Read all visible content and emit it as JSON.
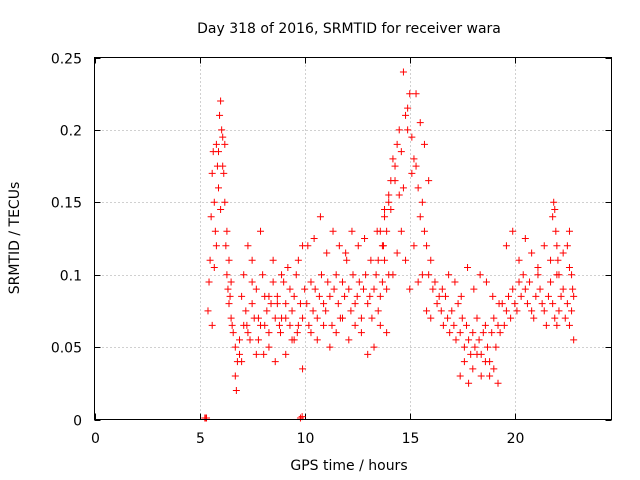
{
  "chart_data": {
    "type": "scatter",
    "title": "Day 318 of 2016, SRMTID for receiver wara",
    "xlabel": "GPS time / hours",
    "ylabel": "SRMTID / TECUs",
    "xlim": [
      0,
      24.6
    ],
    "ylim": [
      0,
      0.25
    ],
    "x_ticks": [
      0,
      5,
      10,
      15,
      20
    ],
    "x_tick_labels": [
      "0",
      "5",
      "10",
      "15",
      "20"
    ],
    "y_ticks": [
      0,
      0.05,
      0.1,
      0.15,
      0.2,
      0.25
    ],
    "y_tick_labels": [
      "0",
      "0.05",
      "0.1",
      "0.15",
      "0.2",
      "0.25"
    ],
    "grid": true,
    "marker": "+",
    "series": [
      {
        "name": "SRMTID",
        "color": "#ff0000",
        "x": [
          5.25,
          5.3,
          5.33,
          9.8,
          9.88,
          5.4,
          5.45,
          5.5,
          5.55,
          5.6,
          5.65,
          5.7,
          5.75,
          5.8,
          5.85,
          5.9,
          5.95,
          6.0,
          6.05,
          6.1,
          6.15,
          6.2,
          6.25,
          6.3,
          6.35,
          6.4,
          6.45,
          6.5,
          6.55,
          6.6,
          5.6,
          5.7,
          5.8,
          5.9,
          6.0,
          6.1,
          6.2,
          6.3,
          6.4,
          6.5,
          6.7,
          6.8,
          6.9,
          7.0,
          7.1,
          7.2,
          7.3,
          7.4,
          7.5,
          7.6,
          7.7,
          7.8,
          7.9,
          8.0,
          8.1,
          8.2,
          8.3,
          8.4,
          8.5,
          8.6,
          8.7,
          8.8,
          8.9,
          9.0,
          9.1,
          9.2,
          9.3,
          9.4,
          9.5,
          9.6,
          9.7,
          9.8,
          9.9,
          10.0,
          6.7,
          6.9,
          7.1,
          7.3,
          7.5,
          7.7,
          7.9,
          8.1,
          8.3,
          8.5,
          8.7,
          8.9,
          9.1,
          9.3,
          9.5,
          9.7,
          9.9,
          6.75,
          7.0,
          7.25,
          7.5,
          7.8,
          8.05,
          8.3,
          8.6,
          8.85,
          9.1,
          9.4,
          9.65,
          9.9,
          10.1,
          10.2,
          10.3,
          10.4,
          10.5,
          10.6,
          10.7,
          10.8,
          10.9,
          11.0,
          11.1,
          11.2,
          11.3,
          11.4,
          11.5,
          11.6,
          11.7,
          11.8,
          11.9,
          12.0,
          12.1,
          12.2,
          12.3,
          12.4,
          12.5,
          12.6,
          12.7,
          12.8,
          12.9,
          13.0,
          13.1,
          13.2,
          13.3,
          13.4,
          13.5,
          13.6,
          13.7,
          13.8,
          13.9,
          14.0,
          10.15,
          10.45,
          10.75,
          11.05,
          11.35,
          11.65,
          11.95,
          12.25,
          12.55,
          12.85,
          13.15,
          13.45,
          13.75,
          10.3,
          10.6,
          10.9,
          11.2,
          11.5,
          11.8,
          12.1,
          12.4,
          12.7,
          13.0,
          13.3,
          13.6,
          13.9,
          13.5,
          13.6,
          13.7,
          13.8,
          13.9,
          14.0,
          14.1,
          14.2,
          14.3,
          14.4,
          14.5,
          14.6,
          14.7,
          14.8,
          14.9,
          15.0,
          15.1,
          15.2,
          15.3,
          15.4,
          15.5,
          15.6,
          15.7,
          15.8,
          15.9,
          16.0,
          16.1,
          16.2,
          16.3,
          16.4,
          13.8,
          14.0,
          14.2,
          14.4,
          14.6,
          14.8,
          15.0,
          15.2,
          15.4,
          15.6,
          15.8,
          16.0,
          14.1,
          14.3,
          14.5,
          14.7,
          14.9,
          15.1,
          15.3,
          15.5,
          15.7,
          15.9,
          16.5,
          16.6,
          16.7,
          16.8,
          16.9,
          17.0,
          17.1,
          17.2,
          17.3,
          17.4,
          17.5,
          17.6,
          17.7,
          17.8,
          17.9,
          18.0,
          18.1,
          18.2,
          18.3,
          18.4,
          18.5,
          18.6,
          18.7,
          18.8,
          18.9,
          19.0,
          19.1,
          19.2,
          19.3,
          19.4,
          16.55,
          16.85,
          17.15,
          17.45,
          17.75,
          18.05,
          18.35,
          18.65,
          18.95,
          19.25,
          17.4,
          17.6,
          17.8,
          18.0,
          18.2,
          18.4,
          18.6,
          18.8,
          19.0,
          19.2,
          19.5,
          19.6,
          19.7,
          19.8,
          19.9,
          20.0,
          20.1,
          20.2,
          20.3,
          20.4,
          20.5,
          20.6,
          20.7,
          20.8,
          20.9,
          21.0,
          21.1,
          21.2,
          21.3,
          21.4,
          21.5,
          21.6,
          21.7,
          21.8,
          21.9,
          22.0,
          22.1,
          22.2,
          22.3,
          22.4,
          22.5,
          22.6,
          22.7,
          22.8,
          19.6,
          19.9,
          20.2,
          20.5,
          20.8,
          21.1,
          21.4,
          21.7,
          22.0,
          22.3,
          22.6,
          21.8,
          21.85,
          21.9,
          21.95,
          22.0,
          22.05,
          22.1,
          22.5,
          22.6,
          22.7,
          22.75,
          22.8
        ],
        "y": [
          0.001,
          0.001,
          0.001,
          0.001,
          0.002,
          0.075,
          0.095,
          0.11,
          0.14,
          0.17,
          0.185,
          0.15,
          0.13,
          0.19,
          0.175,
          0.16,
          0.21,
          0.22,
          0.2,
          0.195,
          0.17,
          0.15,
          0.12,
          0.1,
          0.09,
          0.08,
          0.085,
          0.07,
          0.065,
          0.06,
          0.065,
          0.105,
          0.12,
          0.185,
          0.145,
          0.175,
          0.19,
          0.13,
          0.11,
          0.095,
          0.05,
          0.04,
          0.055,
          0.085,
          0.065,
          0.075,
          0.06,
          0.055,
          0.08,
          0.07,
          0.09,
          0.07,
          0.065,
          0.1,
          0.085,
          0.075,
          0.06,
          0.08,
          0.095,
          0.07,
          0.085,
          0.065,
          0.07,
          0.095,
          0.08,
          0.105,
          0.09,
          0.075,
          0.085,
          0.1,
          0.065,
          0.08,
          0.07,
          0.09,
          0.03,
          0.045,
          0.1,
          0.12,
          0.11,
          0.045,
          0.13,
          0.065,
          0.05,
          0.11,
          0.08,
          0.1,
          0.045,
          0.065,
          0.055,
          0.11,
          0.12,
          0.02,
          0.04,
          0.065,
          0.095,
          0.055,
          0.045,
          0.085,
          0.04,
          0.06,
          0.07,
          0.055,
          0.06,
          0.035,
          0.08,
          0.065,
          0.095,
          0.075,
          0.09,
          0.07,
          0.085,
          0.1,
          0.08,
          0.075,
          0.095,
          0.085,
          0.065,
          0.09,
          0.1,
          0.08,
          0.07,
          0.095,
          0.085,
          0.11,
          0.09,
          0.075,
          0.1,
          0.08,
          0.085,
          0.095,
          0.07,
          0.09,
          0.1,
          0.08,
          0.085,
          0.07,
          0.09,
          0.1,
          0.075,
          0.085,
          0.095,
          0.11,
          0.09,
          0.1,
          0.12,
          0.125,
          0.14,
          0.115,
          0.13,
          0.12,
          0.115,
          0.13,
          0.12,
          0.125,
          0.11,
          0.13,
          0.12,
          0.06,
          0.055,
          0.065,
          0.05,
          0.06,
          0.07,
          0.055,
          0.065,
          0.06,
          0.045,
          0.05,
          0.065,
          0.06,
          0.11,
          0.13,
          0.12,
          0.145,
          0.13,
          0.15,
          0.165,
          0.18,
          0.175,
          0.19,
          0.2,
          0.185,
          0.16,
          0.21,
          0.2,
          0.225,
          0.195,
          0.18,
          0.175,
          0.16,
          0.14,
          0.15,
          0.13,
          0.12,
          0.1,
          0.11,
          0.09,
          0.095,
          0.08,
          0.085,
          0.14,
          0.155,
          0.1,
          0.115,
          0.13,
          0.11,
          0.09,
          0.12,
          0.095,
          0.1,
          0.075,
          0.07,
          0.145,
          0.165,
          0.155,
          0.24,
          0.215,
          0.17,
          0.225,
          0.205,
          0.19,
          0.165,
          0.075,
          0.065,
          0.085,
          0.07,
          0.06,
          0.075,
          0.065,
          0.055,
          0.08,
          0.06,
          0.07,
          0.05,
          0.065,
          0.055,
          0.045,
          0.06,
          0.05,
          0.07,
          0.055,
          0.045,
          0.06,
          0.065,
          0.05,
          0.04,
          0.06,
          0.07,
          0.05,
          0.065,
          0.06,
          0.08,
          0.09,
          0.1,
          0.095,
          0.085,
          0.105,
          0.09,
          0.1,
          0.095,
          0.085,
          0.08,
          0.03,
          0.04,
          0.025,
          0.035,
          0.045,
          0.03,
          0.04,
          0.03,
          0.035,
          0.025,
          0.065,
          0.075,
          0.085,
          0.07,
          0.09,
          0.08,
          0.075,
          0.095,
          0.085,
          0.1,
          0.09,
          0.08,
          0.095,
          0.075,
          0.07,
          0.085,
          0.1,
          0.09,
          0.08,
          0.075,
          0.065,
          0.085,
          0.095,
          0.08,
          0.07,
          0.065,
          0.075,
          0.085,
          0.09,
          0.07,
          0.08,
          0.065,
          0.075,
          0.085,
          0.12,
          0.13,
          0.11,
          0.125,
          0.115,
          0.105,
          0.12,
          0.11,
          0.1,
          0.115,
          0.105,
          0.14,
          0.15,
          0.145,
          0.13,
          0.12,
          0.11,
          0.1,
          0.12,
          0.13,
          0.1,
          0.09,
          0.055
        ]
      }
    ]
  }
}
